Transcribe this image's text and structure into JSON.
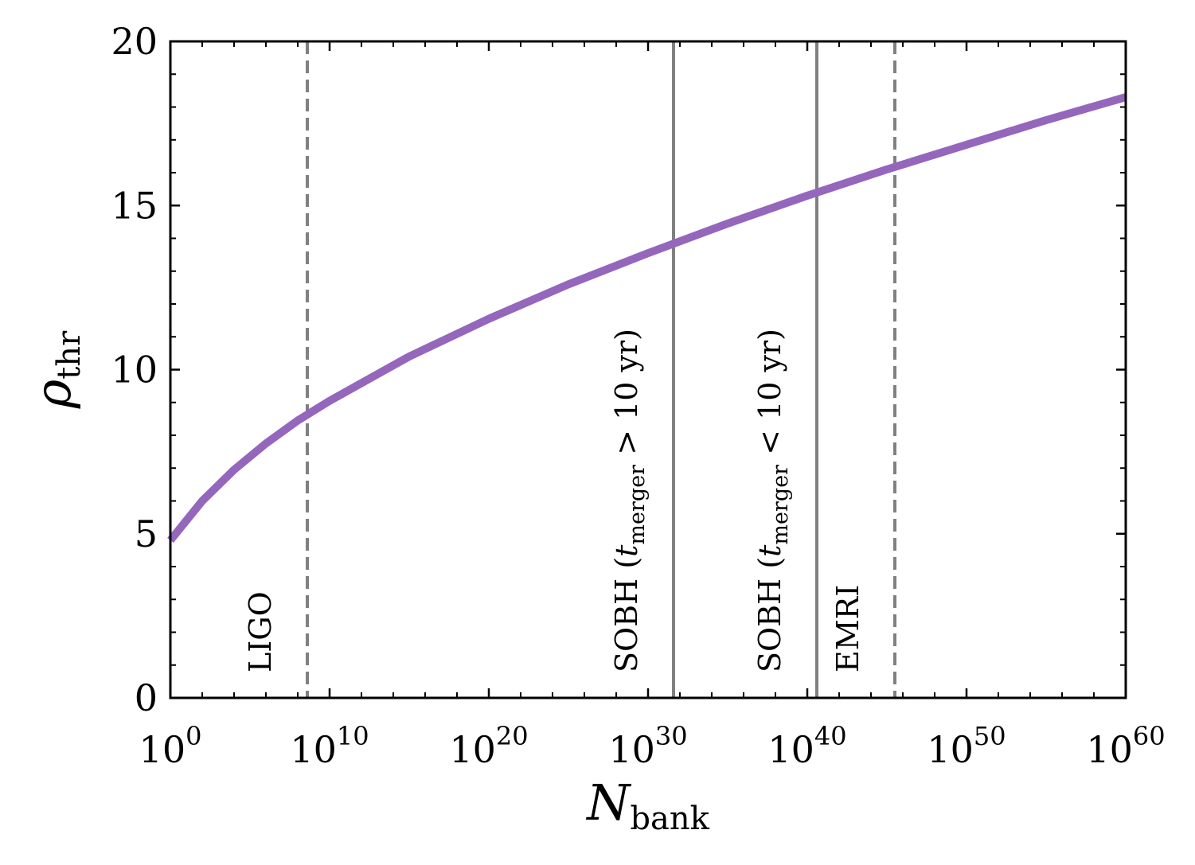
{
  "chart_data": {
    "type": "line",
    "xscale": "log",
    "xlabel": "N",
    "xlabel_sub": "bank",
    "ylabel": "ρ",
    "ylabel_sub": "thr",
    "xlim_log10": [
      0,
      60
    ],
    "ylim": [
      0,
      20
    ],
    "x_ticks": [
      {
        "base": "10",
        "exp": "0",
        "log10": 0
      },
      {
        "base": "10",
        "exp": "10",
        "log10": 10
      },
      {
        "base": "10",
        "exp": "20",
        "log10": 20
      },
      {
        "base": "10",
        "exp": "30",
        "log10": 30
      },
      {
        "base": "10",
        "exp": "40",
        "log10": 40
      },
      {
        "base": "10",
        "exp": "50",
        "log10": 50
      },
      {
        "base": "10",
        "exp": "60",
        "log10": 60
      }
    ],
    "y_ticks": [
      {
        "label": "0",
        "value": 0
      },
      {
        "label": "5",
        "value": 5
      },
      {
        "label": "10",
        "value": 10
      },
      {
        "label": "15",
        "value": 15
      },
      {
        "label": "20",
        "value": 20
      }
    ],
    "grid": false,
    "series": [
      {
        "color": "#9467bd",
        "x_log10": [
          0,
          2,
          4,
          6,
          8,
          10,
          15,
          20,
          25,
          30,
          35,
          40,
          45,
          50,
          55,
          60
        ],
        "y": [
          4.8,
          6.0,
          6.95,
          7.75,
          8.45,
          9.05,
          10.4,
          11.55,
          12.6,
          13.55,
          14.45,
          15.3,
          16.1,
          16.85,
          17.6,
          18.3
        ]
      }
    ],
    "vlines": [
      {
        "x_log10": 8.6,
        "style": "dashed",
        "color": "#808080",
        "label_pre": "LIGO",
        "label_it": "",
        "label_sub": "",
        "label_post": ""
      },
      {
        "x_log10": 31.6,
        "style": "solid",
        "color": "#808080",
        "label_pre": "SOBH (",
        "label_it": "t",
        "label_sub": "merger",
        "label_post": " > 10 yr)"
      },
      {
        "x_log10": 40.6,
        "style": "solid",
        "color": "#808080",
        "label_pre": "SOBH (",
        "label_it": "t",
        "label_sub": "merger",
        "label_post": " < 10 yr)"
      },
      {
        "x_log10": 45.5,
        "style": "dashed",
        "color": "#808080",
        "label_pre": "EMRI",
        "label_it": "",
        "label_sub": "",
        "label_post": ""
      }
    ]
  }
}
